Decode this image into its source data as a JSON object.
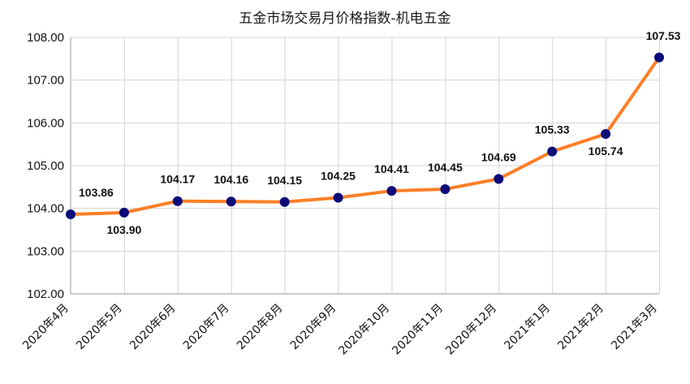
{
  "chart_data": {
    "type": "line",
    "title": "五金市场交易月价格指数-机电五金",
    "categories": [
      "2020年4月",
      "2020年5月",
      "2020年6月",
      "2020年7月",
      "2020年8月",
      "2020年9月",
      "2020年10月",
      "2020年11月",
      "2020年12月",
      "2021年1月",
      "2021年2月",
      "2021年3月"
    ],
    "series": [
      {
        "values": [
          103.86,
          103.9,
          104.17,
          104.16,
          104.15,
          104.25,
          104.41,
          104.45,
          104.69,
          105.33,
          105.74,
          107.53
        ],
        "labels": [
          "103.86",
          "103.90",
          "104.17",
          "104.16",
          "104.15",
          "104.25",
          "104.41",
          "104.45",
          "104.69",
          "105.33",
          "105.74",
          "107.53"
        ]
      }
    ],
    "y_ticks": [
      "102.00",
      "103.00",
      "104.00",
      "105.00",
      "106.00",
      "107.00",
      "108.00"
    ],
    "ylim": [
      102,
      108
    ],
    "grid": true,
    "legend": "none",
    "colors": {
      "line": "#ff7f27",
      "marker": "#0b0b7a",
      "grid": "#d4d4d4",
      "axis": "#9a9a9a"
    }
  }
}
